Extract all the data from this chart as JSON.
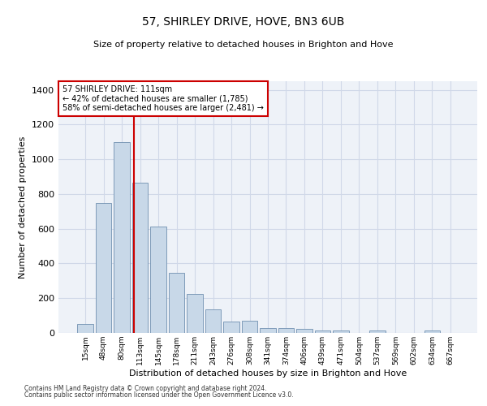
{
  "title": "57, SHIRLEY DRIVE, HOVE, BN3 6UB",
  "subtitle": "Size of property relative to detached houses in Brighton and Hove",
  "xlabel": "Distribution of detached houses by size in Brighton and Hove",
  "ylabel": "Number of detached properties",
  "footnote1": "Contains HM Land Registry data © Crown copyright and database right 2024.",
  "footnote2": "Contains public sector information licensed under the Open Government Licence v3.0.",
  "annotation_title": "57 SHIRLEY DRIVE: 111sqm",
  "annotation_line1": "← 42% of detached houses are smaller (1,785)",
  "annotation_line2": "58% of semi-detached houses are larger (2,481) →",
  "bar_labels": [
    "15sqm",
    "48sqm",
    "80sqm",
    "113sqm",
    "145sqm",
    "178sqm",
    "211sqm",
    "243sqm",
    "276sqm",
    "308sqm",
    "341sqm",
    "374sqm",
    "406sqm",
    "439sqm",
    "471sqm",
    "504sqm",
    "537sqm",
    "569sqm",
    "602sqm",
    "634sqm",
    "667sqm"
  ],
  "bar_values": [
    50,
    750,
    1100,
    865,
    615,
    345,
    225,
    135,
    65,
    70,
    30,
    30,
    22,
    15,
    15,
    0,
    12,
    0,
    0,
    12,
    0
  ],
  "bar_color": "#c8d8e8",
  "bar_edge_color": "#7090b0",
  "vline_x_index": 3,
  "vline_color": "#cc0000",
  "annotation_box_color": "#cc0000",
  "ylim": [
    0,
    1450
  ],
  "yticks": [
    0,
    200,
    400,
    600,
    800,
    1000,
    1200,
    1400
  ],
  "grid_color": "#d0d8e8",
  "bg_color": "#eef2f8",
  "fig_bg_color": "#ffffff",
  "title_fontsize": 10,
  "subtitle_fontsize": 8,
  "ylabel_fontsize": 8,
  "xlabel_fontsize": 8,
  "ytick_fontsize": 8,
  "xtick_fontsize": 6.5
}
